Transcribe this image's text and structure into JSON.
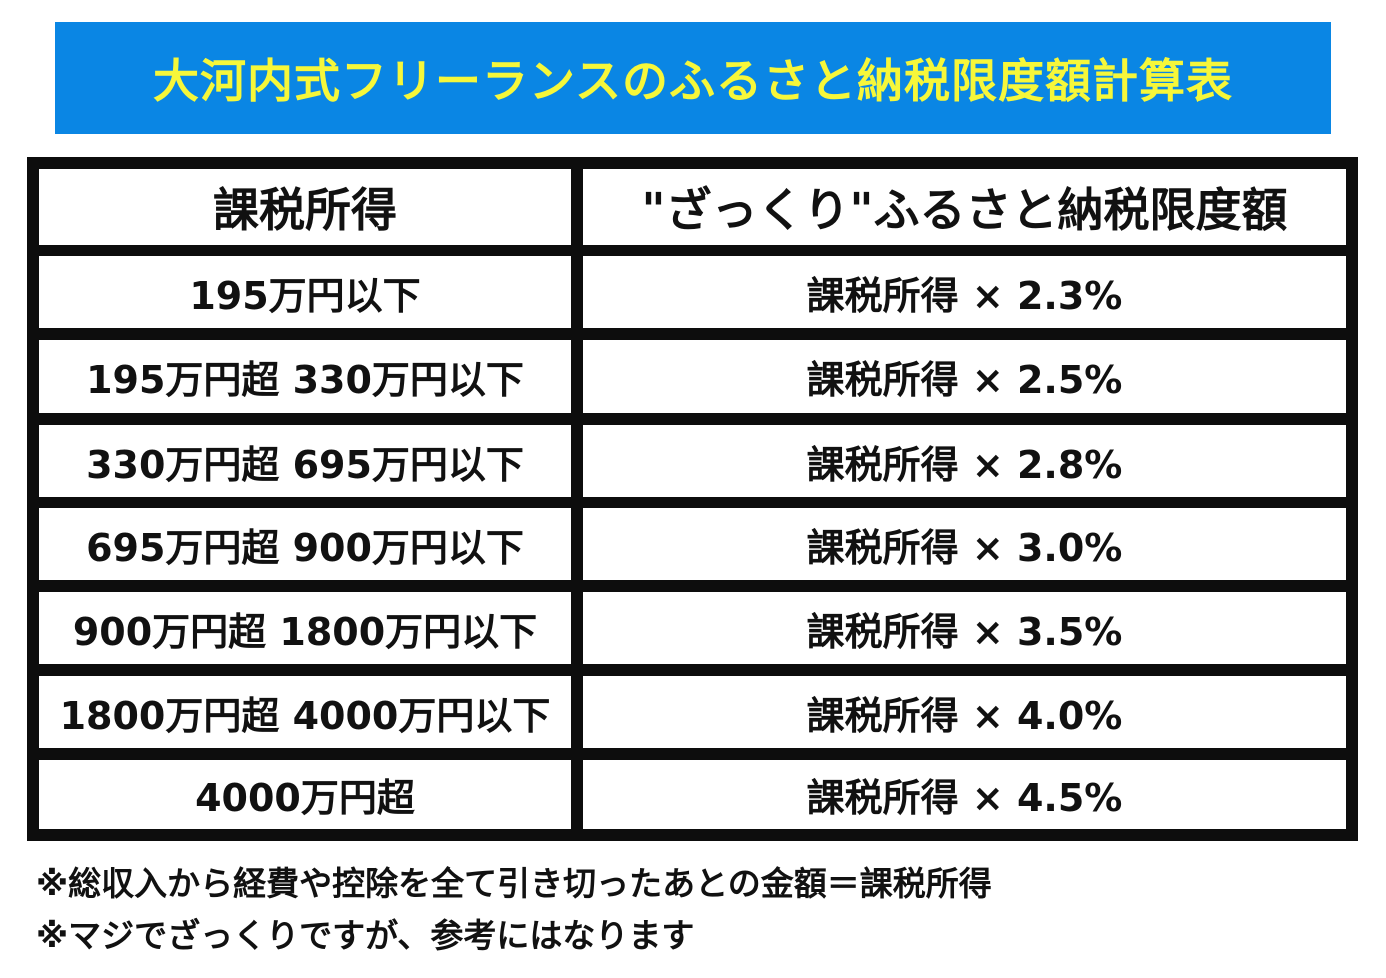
{
  "title": "大河内式フリーランスのふるさと納税限度額計算表",
  "colors": {
    "banner_background": "#0a86e4",
    "banner_text": "#f6f73a",
    "grid": "#0d0d0d"
  },
  "table": {
    "headers": [
      "課税所得",
      "\"ざっくり\"ふるさと納税限度額"
    ],
    "rows": [
      {
        "income": "195万円以下",
        "limit": "課税所得 × 2.3%"
      },
      {
        "income": "195万円超 330万円以下",
        "limit": "課税所得 × 2.5%"
      },
      {
        "income": "330万円超 695万円以下",
        "limit": "課税所得 × 2.8%"
      },
      {
        "income": "695万円超 900万円以下",
        "limit": "課税所得 × 3.0%"
      },
      {
        "income": "900万円超 1800万円以下",
        "limit": "課税所得 × 3.5%"
      },
      {
        "income": "1800万円超 4000万円以下",
        "limit": "課税所得 × 4.0%"
      },
      {
        "income": "4000万円超",
        "limit": "課税所得 × 4.5%"
      }
    ]
  },
  "notes": [
    "※総収入から経費や控除を全て引き切ったあとの金額＝課税所得",
    "※マジでざっくりですが、参考にはなります"
  ]
}
